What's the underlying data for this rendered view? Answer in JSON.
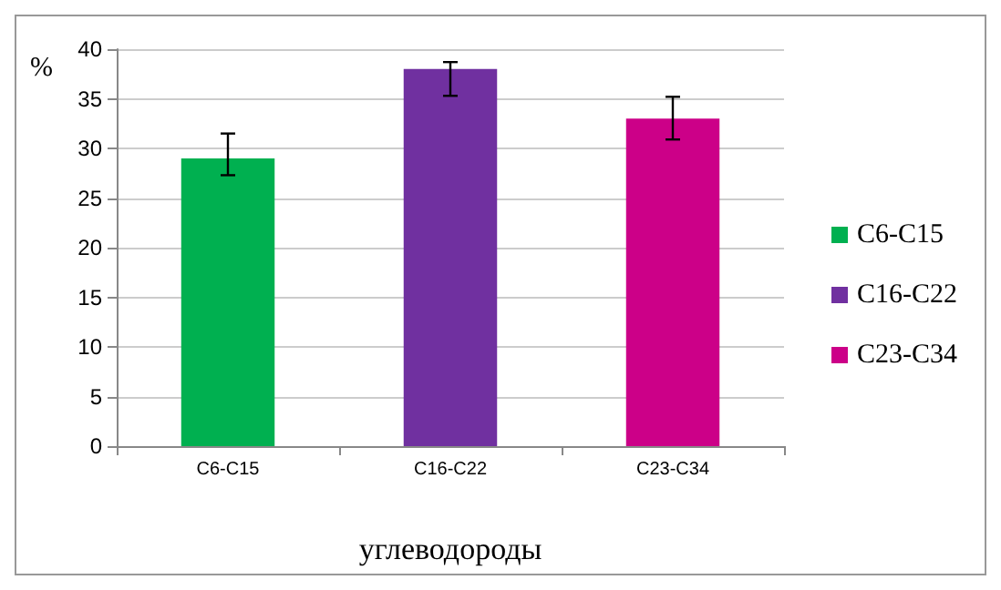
{
  "chart_data": {
    "type": "bar",
    "xlabel": "углеводороды",
    "ylabel": "%",
    "categories": [
      "C6-C15",
      "C16-C22",
      "C23-C34"
    ],
    "series": [
      {
        "name": "C6-C15",
        "color": "#00b050",
        "values": [
          29,
          null,
          null
        ],
        "errors": [
          [
            27.3,
            31.5
          ],
          null,
          null
        ]
      },
      {
        "name": "C16-C22",
        "color": "#7030a0",
        "values": [
          null,
          38,
          null
        ],
        "errors": [
          null,
          [
            35.3,
            38.7
          ],
          null
        ]
      },
      {
        "name": "C23-C34",
        "color": "#cc0088",
        "values": [
          null,
          null,
          33
        ],
        "errors": [
          null,
          null,
          [
            30.9,
            35.2
          ]
        ]
      }
    ],
    "ylim": [
      0,
      40
    ],
    "yticks": [
      0,
      5,
      10,
      15,
      20,
      25,
      30,
      35,
      40
    ],
    "grid": "y",
    "legend": "right"
  }
}
